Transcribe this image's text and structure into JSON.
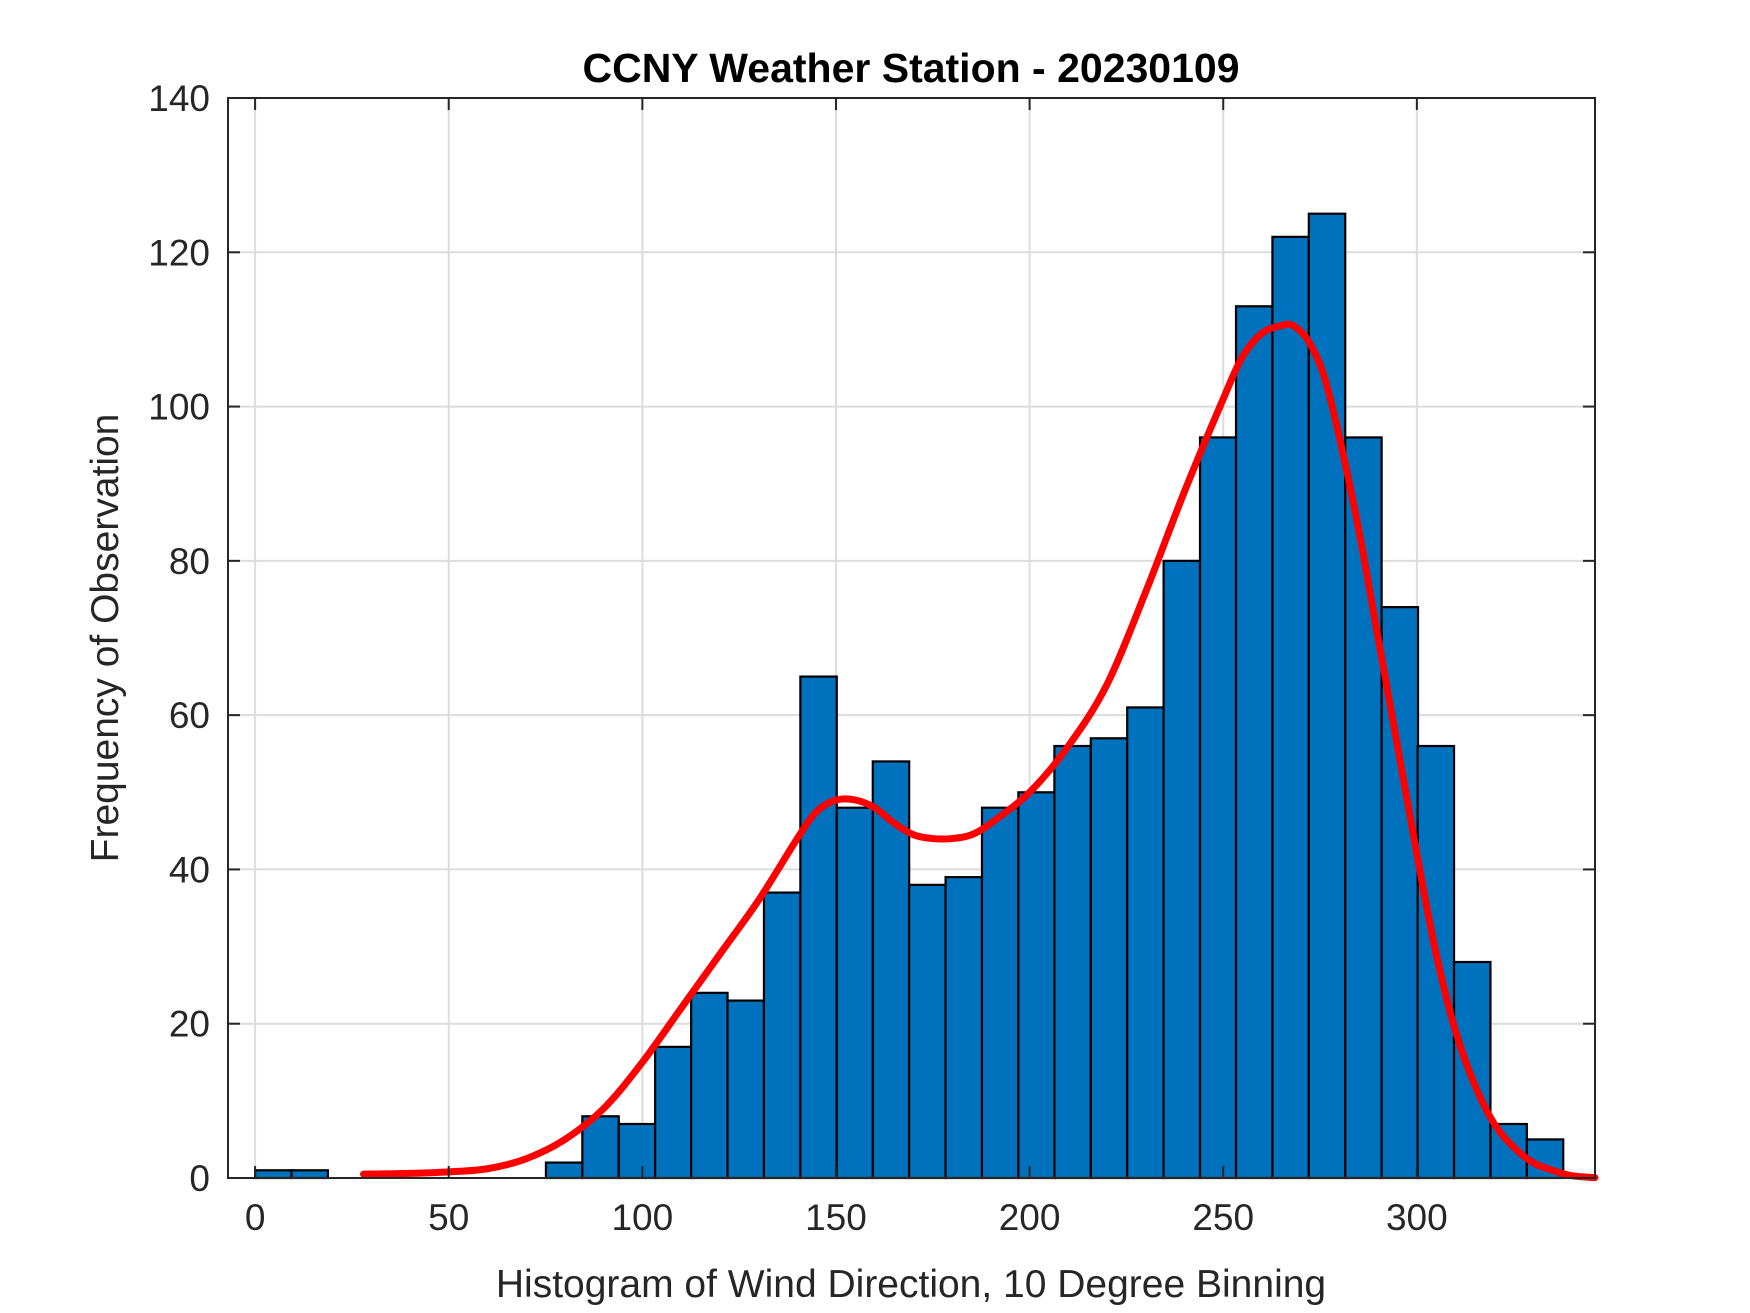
{
  "chart_data": {
    "type": "bar",
    "title": "CCNY Weather Station - 20230109",
    "xlabel": "Histogram of Wind Direction, 10 Degree Binning",
    "ylabel": "Frequency of Observation",
    "xlim": [
      -7,
      346
    ],
    "ylim": [
      0,
      140
    ],
    "xticks": [
      0,
      50,
      100,
      150,
      200,
      250,
      300
    ],
    "yticks": [
      0,
      20,
      40,
      60,
      80,
      100,
      120,
      140
    ],
    "grid": true,
    "bin_width": 9.4,
    "bar_color": "#0072BD",
    "bars": [
      {
        "start": 0.0,
        "value": 1
      },
      {
        "start": 9.4,
        "value": 1
      },
      {
        "start": 75.1,
        "value": 2
      },
      {
        "start": 84.5,
        "value": 8
      },
      {
        "start": 93.9,
        "value": 7
      },
      {
        "start": 103.3,
        "value": 17
      },
      {
        "start": 112.6,
        "value": 24
      },
      {
        "start": 122.0,
        "value": 23
      },
      {
        "start": 131.4,
        "value": 37
      },
      {
        "start": 140.8,
        "value": 65
      },
      {
        "start": 150.2,
        "value": 48
      },
      {
        "start": 159.5,
        "value": 54
      },
      {
        "start": 168.9,
        "value": 38
      },
      {
        "start": 178.3,
        "value": 39
      },
      {
        "start": 187.7,
        "value": 48
      },
      {
        "start": 197.1,
        "value": 50
      },
      {
        "start": 206.4,
        "value": 56
      },
      {
        "start": 215.8,
        "value": 57
      },
      {
        "start": 225.2,
        "value": 61
      },
      {
        "start": 234.6,
        "value": 80
      },
      {
        "start": 244.0,
        "value": 96
      },
      {
        "start": 253.3,
        "value": 113
      },
      {
        "start": 262.7,
        "value": 122
      },
      {
        "start": 272.1,
        "value": 125
      },
      {
        "start": 281.5,
        "value": 96
      },
      {
        "start": 290.9,
        "value": 74
      },
      {
        "start": 300.2,
        "value": 56
      },
      {
        "start": 309.6,
        "value": 28
      },
      {
        "start": 319.0,
        "value": 7
      },
      {
        "start": 328.4,
        "value": 5
      }
    ],
    "fit_line": {
      "color": "#FF0000",
      "x": [
        28,
        40,
        50,
        60,
        70,
        80,
        90,
        100,
        110,
        120,
        130,
        140,
        145,
        150,
        155,
        160,
        165,
        170,
        175,
        180,
        185,
        190,
        200,
        210,
        220,
        230,
        240,
        250,
        255,
        260,
        265,
        268,
        272,
        276,
        280,
        285,
        290,
        295,
        300,
        305,
        310,
        315,
        320,
        325,
        330,
        335,
        340,
        346
      ],
      "y": [
        0.5,
        0.6,
        0.8,
        1.2,
        2.5,
        5,
        9,
        15,
        22,
        29,
        36,
        44,
        47.5,
        49,
        49,
        48,
        46,
        44.5,
        44,
        44,
        44.5,
        46,
        50,
        56,
        64,
        76,
        89,
        101,
        106.5,
        109.5,
        110.5,
        110.5,
        108.5,
        104,
        96,
        84,
        70,
        56,
        42,
        29,
        19,
        12,
        7,
        4,
        2,
        1,
        0.3,
        0.05
      ]
    }
  }
}
